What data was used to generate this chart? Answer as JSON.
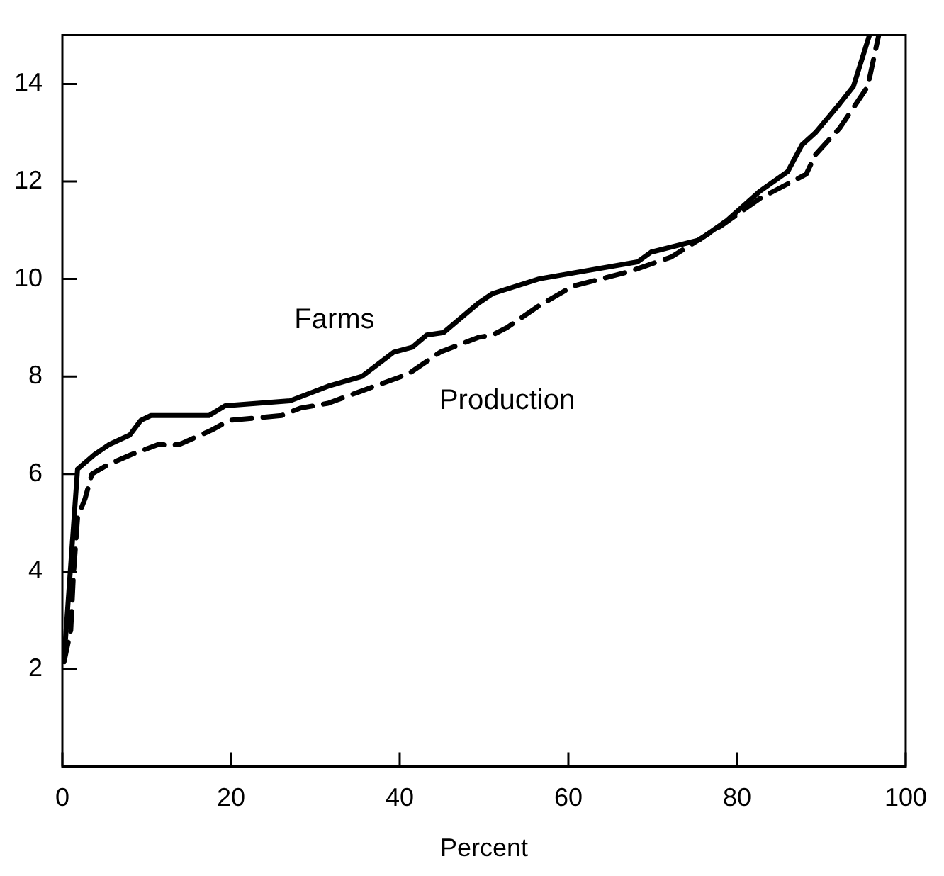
{
  "chart_data": {
    "type": "line",
    "xlabel": "Percent",
    "xlim": [
      0,
      100
    ],
    "xticks": [
      0,
      20,
      40,
      60,
      80,
      100
    ],
    "ylim": [
      0,
      15
    ],
    "yticks": [
      2,
      4,
      6,
      8,
      10,
      12,
      14
    ],
    "grid": false,
    "legend": false,
    "marker": "none",
    "series": [
      {
        "name": "Farms",
        "color": "#000000",
        "line_style": "solid",
        "x": [
          0.2,
          1.8,
          3.8,
          5.5,
          8,
          9.3,
          10.5,
          17.4,
          19.3,
          27,
          31.5,
          35.5,
          39.3,
          41.5,
          43.2,
          45.2,
          49.3,
          51,
          56.5,
          68.2,
          69.8,
          75.5,
          78.8,
          82.7,
          86,
          87.7,
          89.3,
          92.2,
          93.8,
          95.7
        ],
        "values": [
          2.2,
          6.1,
          6.4,
          6.6,
          6.8,
          7.1,
          7.2,
          7.2,
          7.4,
          7.5,
          7.8,
          8.0,
          8.5,
          8.6,
          8.85,
          8.9,
          9.5,
          9.7,
          10.0,
          10.35,
          10.55,
          10.8,
          11.2,
          11.8,
          12.2,
          12.75,
          13.0,
          13.6,
          13.95,
          15
        ]
      },
      {
        "name": "Production",
        "color": "#000000",
        "line_style": "dashed",
        "x": [
          0.2,
          1,
          1.3,
          1.8,
          2.7,
          3.5,
          5.5,
          8.2,
          11.3,
          13.8,
          17.7,
          19.8,
          26,
          28.2,
          31.5,
          37,
          41,
          44.8,
          49.3,
          51,
          52.7,
          56.5,
          60.5,
          67.2,
          72.2,
          78.2,
          82.7,
          88.2,
          89.3,
          92.2,
          95.5,
          96.8
        ],
        "values": [
          2.15,
          2.8,
          3.9,
          5.1,
          5.5,
          6.0,
          6.2,
          6.4,
          6.6,
          6.6,
          6.9,
          7.1,
          7.2,
          7.35,
          7.45,
          7.8,
          8.05,
          8.5,
          8.8,
          8.85,
          9.0,
          9.45,
          9.85,
          10.15,
          10.45,
          11.1,
          11.65,
          12.15,
          12.55,
          13.1,
          13.95,
          15
        ]
      }
    ]
  }
}
